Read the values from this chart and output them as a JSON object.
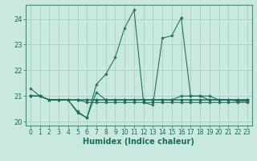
{
  "xlabel": "Humidex (Indice chaleur)",
  "background_color": "#c8e8e0",
  "grid_color": "#a0ccbf",
  "line_color": "#1a6b5a",
  "axis_bar_color": "#4a8a7a",
  "xlim_min": -0.5,
  "xlim_max": 23.5,
  "ylim_min": 19.85,
  "ylim_max": 24.55,
  "yticks": [
    20,
    21,
    22,
    23,
    24
  ],
  "xticks": [
    0,
    1,
    2,
    3,
    4,
    5,
    6,
    7,
    8,
    9,
    10,
    11,
    12,
    13,
    14,
    15,
    16,
    17,
    18,
    19,
    20,
    21,
    22,
    23
  ],
  "series": [
    [
      21.3,
      21.0,
      20.85,
      20.85,
      20.85,
      20.4,
      20.15,
      21.45,
      21.85,
      22.5,
      23.65,
      24.35,
      20.75,
      20.65,
      23.25,
      23.35,
      24.05,
      21.0,
      21.0,
      20.85,
      20.85,
      20.85,
      20.8,
      20.8
    ],
    [
      21.0,
      21.0,
      20.85,
      20.85,
      20.85,
      20.85,
      20.85,
      20.85,
      20.85,
      20.85,
      20.85,
      20.85,
      20.85,
      20.85,
      20.85,
      20.85,
      20.85,
      20.85,
      20.85,
      20.85,
      20.85,
      20.85,
      20.85,
      20.85
    ],
    [
      21.0,
      21.0,
      20.85,
      20.85,
      20.85,
      20.85,
      20.85,
      20.85,
      20.85,
      20.85,
      20.85,
      20.85,
      20.85,
      20.85,
      20.85,
      20.85,
      21.0,
      21.0,
      21.0,
      21.0,
      20.85,
      20.85,
      20.85,
      20.85
    ],
    [
      21.0,
      21.0,
      20.85,
      20.85,
      20.85,
      20.35,
      20.15,
      21.15,
      20.85,
      20.85,
      20.85,
      20.85,
      20.85,
      20.85,
      20.85,
      20.85,
      20.85,
      20.85,
      20.85,
      20.85,
      20.85,
      20.85,
      20.85,
      20.85
    ],
    [
      21.0,
      21.0,
      20.85,
      20.85,
      20.85,
      20.85,
      20.75,
      20.75,
      20.75,
      20.75,
      20.75,
      20.75,
      20.75,
      20.75,
      20.75,
      20.75,
      20.75,
      20.75,
      20.75,
      20.75,
      20.75,
      20.75,
      20.75,
      20.75
    ]
  ],
  "xlabel_fontsize": 7,
  "tick_fontsize": 5.5,
  "tick_color": "#1a6b5a",
  "spine_color": "#4a8a7a"
}
